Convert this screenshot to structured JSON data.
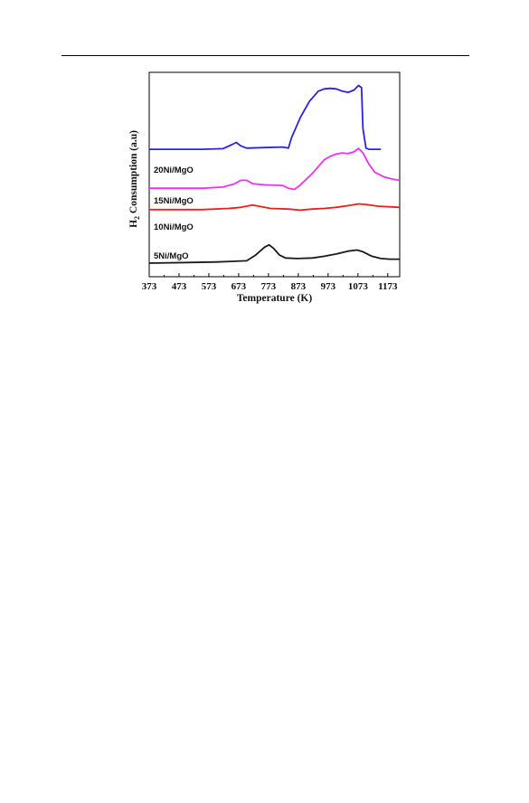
{
  "page": {
    "header_rule": true
  },
  "chart_data": {
    "type": "line",
    "title": "",
    "xlabel": "Temperature (K)",
    "ylabel_main": "H",
    "ylabel_sub": "2",
    "ylabel_rest": " Consumption (a.u)",
    "xlim": [
      373,
      1213
    ],
    "ylim": [
      0,
      100
    ],
    "x_ticks": [
      373,
      473,
      573,
      673,
      773,
      873,
      973,
      1073,
      1173
    ],
    "grid": false,
    "legend": "inline labels left of each curve",
    "series": [
      {
        "name": "20Ni/MgO",
        "color": "#2a22e0",
        "points": [
          [
            373,
            42
          ],
          [
            550,
            42
          ],
          [
            620,
            42.5
          ],
          [
            650,
            46
          ],
          [
            665,
            48
          ],
          [
            680,
            45
          ],
          [
            700,
            43
          ],
          [
            760,
            43.5
          ],
          [
            820,
            44
          ],
          [
            840,
            43
          ],
          [
            850,
            52
          ],
          [
            880,
            70
          ],
          [
            910,
            84
          ],
          [
            940,
            93
          ],
          [
            960,
            95
          ],
          [
            980,
            95.5
          ],
          [
            1000,
            95
          ],
          [
            1020,
            93
          ],
          [
            1040,
            92
          ],
          [
            1060,
            94
          ],
          [
            1075,
            98
          ],
          [
            1085,
            96
          ],
          [
            1090,
            60
          ],
          [
            1100,
            43
          ],
          [
            1110,
            42
          ],
          [
            1150,
            42
          ]
        ]
      },
      {
        "name": "15Ni/MgO",
        "color": "#f030f0",
        "points": [
          [
            373,
            30
          ],
          [
            550,
            30
          ],
          [
            620,
            31
          ],
          [
            660,
            34
          ],
          [
            680,
            37
          ],
          [
            700,
            37
          ],
          [
            720,
            34
          ],
          [
            760,
            33
          ],
          [
            820,
            32.5
          ],
          [
            840,
            30
          ],
          [
            860,
            29
          ],
          [
            880,
            33
          ],
          [
            920,
            43
          ],
          [
            960,
            55
          ],
          [
            980,
            58
          ],
          [
            1000,
            60
          ],
          [
            1020,
            61
          ],
          [
            1040,
            60.5
          ],
          [
            1060,
            62
          ],
          [
            1075,
            65
          ],
          [
            1090,
            61
          ],
          [
            1110,
            51
          ],
          [
            1130,
            44
          ],
          [
            1160,
            40
          ],
          [
            1190,
            38
          ],
          [
            1213,
            37
          ]
        ]
      },
      {
        "name": "10Ni/MgO",
        "color": "#e82020",
        "points": [
          [
            373,
            20
          ],
          [
            550,
            20
          ],
          [
            640,
            21
          ],
          [
            680,
            22
          ],
          [
            720,
            24
          ],
          [
            740,
            23
          ],
          [
            780,
            21
          ],
          [
            840,
            20.5
          ],
          [
            880,
            19.5
          ],
          [
            920,
            20.5
          ],
          [
            960,
            21
          ],
          [
            1000,
            22
          ],
          [
            1040,
            23.5
          ],
          [
            1075,
            25
          ],
          [
            1100,
            24.5
          ],
          [
            1140,
            23
          ],
          [
            1213,
            22
          ]
        ]
      },
      {
        "name": "5Ni/MgO",
        "color": "#1a1a1a",
        "points": [
          [
            373,
            4
          ],
          [
            500,
            4.5
          ],
          [
            600,
            5
          ],
          [
            700,
            6
          ],
          [
            730,
            11
          ],
          [
            760,
            18
          ],
          [
            775,
            20
          ],
          [
            790,
            17
          ],
          [
            810,
            11
          ],
          [
            830,
            8.5
          ],
          [
            870,
            8
          ],
          [
            920,
            8.5
          ],
          [
            960,
            10
          ],
          [
            1000,
            12
          ],
          [
            1040,
            14.5
          ],
          [
            1070,
            15.5
          ],
          [
            1090,
            14
          ],
          [
            1120,
            10
          ],
          [
            1150,
            8
          ],
          [
            1180,
            7.5
          ],
          [
            1213,
            7.5
          ]
        ]
      }
    ],
    "labels": [
      {
        "text": "20Ni/MgO",
        "series": "20Ni/MgO"
      },
      {
        "text": "15Ni/MgO",
        "series": "15Ni/MgO"
      },
      {
        "text": "10Ni/MgO",
        "series": "10Ni/MgO"
      },
      {
        "text": "5Ni/MgO",
        "series": "5Ni/MgO"
      }
    ]
  }
}
